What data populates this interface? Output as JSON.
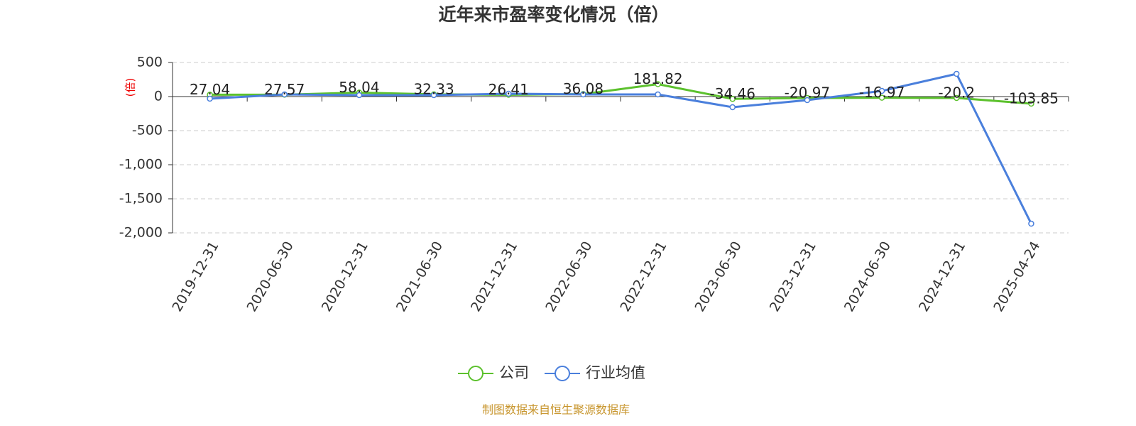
{
  "chart_data": {
    "type": "line",
    "title": "近年来市盈率变化情况（倍）",
    "y_label": "(倍)",
    "source": "制图数据来自恒生聚源数据库",
    "categories": [
      "2019-12-31",
      "2020-06-30",
      "2020-12-31",
      "2021-06-30",
      "2021-12-31",
      "2022-06-30",
      "2022-12-31",
      "2023-06-30",
      "2023-12-31",
      "2024-06-30",
      "2024-12-31",
      "2025-04-24"
    ],
    "series": [
      {
        "name": "公司",
        "color": "#5cc12d",
        "values": [
          27.04,
          27.57,
          58.04,
          32.33,
          26.41,
          36.08,
          181.82,
          -34.46,
          -20.97,
          -16.97,
          -20.2,
          -103.85
        ]
      },
      {
        "name": "行业均值",
        "color": "#4a7fdc",
        "values": [
          -31,
          31,
          21,
          21,
          42,
          31,
          31,
          -156,
          -52,
          83,
          333,
          -1865
        ]
      }
    ],
    "ylim": [
      -2000,
      500
    ],
    "yticks": [
      500,
      0,
      -500,
      {
        "value": -1000,
        "label": "-1,000"
      },
      {
        "value": -1500,
        "label": "-1,500"
      },
      {
        "value": -2000,
        "label": "-2,000"
      }
    ],
    "grid": true,
    "legend": "bottom"
  }
}
